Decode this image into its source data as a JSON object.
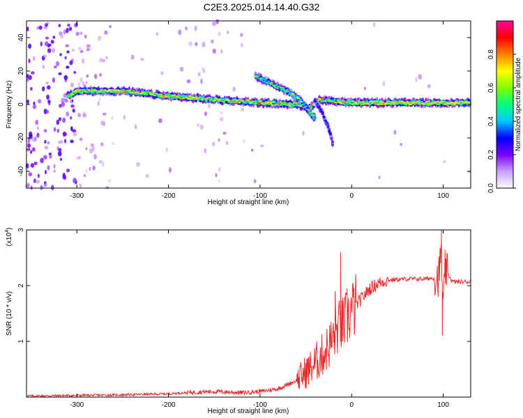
{
  "title": "C2E3.2025.014.14.40.G32",
  "chart_data": [
    {
      "type": "heatmap",
      "xlabel": "Height of straight line (km)",
      "ylabel": "Frequency (Hz)",
      "xlim": [
        -355,
        130
      ],
      "ylim": [
        -50,
        50
      ],
      "xticks": [
        -300,
        -200,
        -100,
        0,
        100
      ],
      "yticks": [
        -40,
        -20,
        0,
        20,
        40
      ],
      "colorbar": {
        "label": "Normalized spectral amplitude",
        "range": [
          0,
          1
        ],
        "ticks": [
          "0.0",
          "0.2",
          "0.4",
          "0.6",
          "0.8"
        ],
        "colors": [
          "#ffffff",
          "#c9a0ff",
          "#7a00ff",
          "#0000ff",
          "#00c8ff",
          "#00ff80",
          "#80ff00",
          "#ffff00",
          "#ff8000",
          "#ff0000",
          "#ff00a0"
        ]
      },
      "ridges": [
        {
          "points": [
            [
              -310,
              5
            ],
            [
              -300,
              8
            ],
            [
              -250,
              8
            ],
            [
              -200,
              5
            ],
            [
              -150,
              3
            ],
            [
              -100,
              1
            ],
            [
              -60,
              0
            ],
            [
              -45,
              -2
            ],
            [
              -35,
              3
            ],
            [
              -20,
              2
            ],
            [
              0,
              1
            ],
            [
              50,
              1
            ],
            [
              100,
              1
            ],
            [
              130,
              1
            ]
          ],
          "amplitude": 0.6
        },
        {
          "points": [
            [
              -105,
              17
            ],
            [
              -90,
              13
            ],
            [
              -70,
              8
            ],
            [
              -55,
              2
            ],
            [
              -45,
              -5
            ],
            [
              -40,
              -8
            ]
          ],
          "amplitude": 0.5
        },
        {
          "points": [
            [
              -40,
              2
            ],
            [
              -32,
              -5
            ],
            [
              -25,
              -14
            ],
            [
              -20,
              -25
            ]
          ],
          "amplitude": 0.3
        }
      ]
    },
    {
      "type": "line",
      "xlabel": "Height of straight line (km)",
      "ylabel": "SNR (10 * v/v)",
      "y_multiplier": "(x10",
      "y_multiplier_exponent": "4",
      "y_multiplier_close": ")",
      "xlim": [
        -355,
        130
      ],
      "ylim": [
        0,
        3
      ],
      "xticks": [
        -300,
        -200,
        -100,
        0,
        100
      ],
      "yticks": [
        1,
        2,
        3
      ],
      "color": "#e82a2a",
      "series": [
        {
          "x": [
            -355,
            -300,
            -250,
            -200,
            -170,
            -150,
            -120,
            -100,
            -80,
            -60,
            -50,
            -40,
            -30,
            -20,
            -15,
            -10,
            -5,
            0,
            10,
            20,
            30,
            40,
            60,
            80,
            95,
            98,
            100,
            102,
            110,
            130
          ],
          "y": [
            0.02,
            0.03,
            0.04,
            0.06,
            0.09,
            0.1,
            0.08,
            0.1,
            0.15,
            0.3,
            0.45,
            0.6,
            0.8,
            1.05,
            1.25,
            1.3,
            1.4,
            1.55,
            1.75,
            1.95,
            2.05,
            2.1,
            2.12,
            2.12,
            2.15,
            2.6,
            1.5,
            2.3,
            2.07,
            2.07
          ]
        }
      ],
      "spikes": [
        [
          -12,
          2.6
        ],
        [
          -18,
          1.9
        ],
        [
          -5,
          1.95
        ],
        [
          98,
          3.0
        ],
        [
          99,
          1.1
        ]
      ]
    }
  ]
}
